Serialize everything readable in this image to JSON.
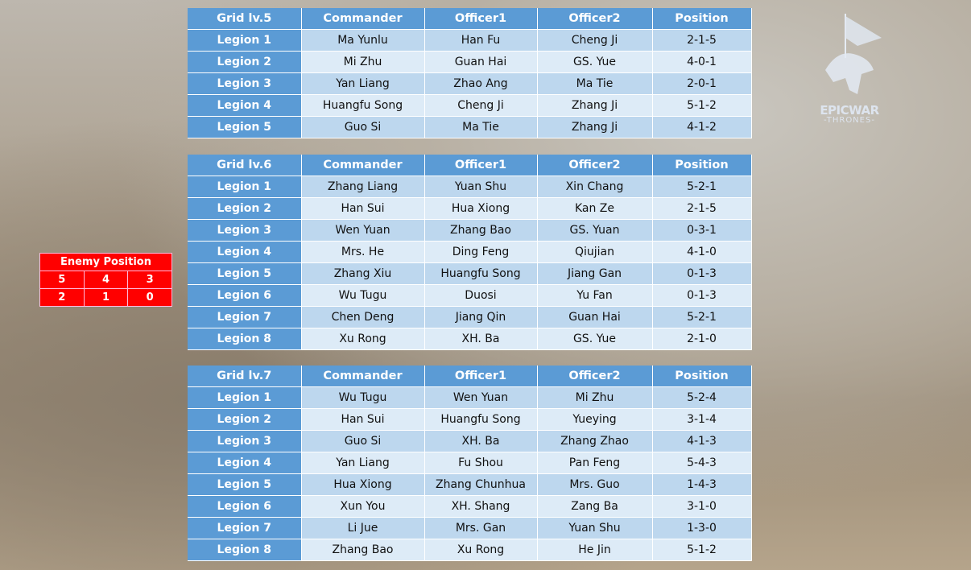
{
  "headers": [
    "Commander",
    "Officer1",
    "Officer2",
    "Position"
  ],
  "tables": [
    {
      "title": "Grid lv.5",
      "rows": [
        [
          "Legion 1",
          "Ma Yunlu",
          "Han Fu",
          "Cheng Ji",
          "2-1-5"
        ],
        [
          "Legion 2",
          "Mi Zhu",
          "Guan Hai",
          "GS. Yue",
          "4-0-1"
        ],
        [
          "Legion 3",
          "Yan Liang",
          "Zhao Ang",
          "Ma Tie",
          "2-0-1"
        ],
        [
          "Legion 4",
          "Huangfu Song",
          "Cheng Ji",
          "Zhang Ji",
          "5-1-2"
        ],
        [
          "Legion 5",
          "Guo Si",
          "Ma Tie",
          "Zhang Ji",
          "4-1-2"
        ]
      ]
    },
    {
      "title": "Grid lv.6",
      "rows": [
        [
          "Legion 1",
          "Zhang Liang",
          "Yuan Shu",
          "Xin Chang",
          "5-2-1"
        ],
        [
          "Legion 2",
          "Han Sui",
          "Hua Xiong",
          "Kan Ze",
          "2-1-5"
        ],
        [
          "Legion 3",
          "Wen Yuan",
          "Zhang Bao",
          "GS. Yuan",
          "0-3-1"
        ],
        [
          "Legion 4",
          "Mrs. He",
          "Ding Feng",
          "Qiujian",
          "4-1-0"
        ],
        [
          "Legion 5",
          "Zhang Xiu",
          "Huangfu Song",
          "Jiang Gan",
          "0-1-3"
        ],
        [
          "Legion 6",
          "Wu Tugu",
          "Duosi",
          "Yu Fan",
          "0-1-3"
        ],
        [
          "Legion 7",
          "Chen Deng",
          "Jiang Qin",
          "Guan Hai",
          "5-2-1"
        ],
        [
          "Legion 8",
          "Xu Rong",
          "XH. Ba",
          "GS. Yue",
          "2-1-0"
        ]
      ]
    },
    {
      "title": "Grid lv.7",
      "rows": [
        [
          "Legion 1",
          "Wu Tugu",
          "Wen Yuan",
          "Mi Zhu",
          "5-2-4"
        ],
        [
          "Legion 2",
          "Han Sui",
          "Huangfu Song",
          "Yueying",
          "3-1-4"
        ],
        [
          "Legion 3",
          "Guo Si",
          "XH. Ba",
          "Zhang Zhao",
          "4-1-3"
        ],
        [
          "Legion 4",
          "Yan Liang",
          "Fu Shou",
          "Pan Feng",
          "5-4-3"
        ],
        [
          "Legion 5",
          "Hua Xiong",
          "Zhang Chunhua",
          "Mrs. Guo",
          "1-4-3"
        ],
        [
          "Legion 6",
          "Xun You",
          "XH. Shang",
          "Zang Ba",
          "3-1-0"
        ],
        [
          "Legion 7",
          "Li Jue",
          "Mrs. Gan",
          "Yuan Shu",
          "1-3-0"
        ],
        [
          "Legion 8",
          "Zhang Bao",
          "Xu Rong",
          "He Jin",
          "5-1-2"
        ]
      ]
    }
  ],
  "enemy": {
    "title": "Enemy Position",
    "grid": [
      [
        "5",
        "4",
        "3"
      ],
      [
        "2",
        "1",
        "0"
      ]
    ]
  },
  "logo": {
    "line1": "EPICWAR",
    "line2": "-THRONES-"
  },
  "colors": {
    "header": "#5b9bd5",
    "row_dark": "#bdd7ee",
    "row_light": "#ddebf7",
    "enemy": "#ff0000"
  }
}
